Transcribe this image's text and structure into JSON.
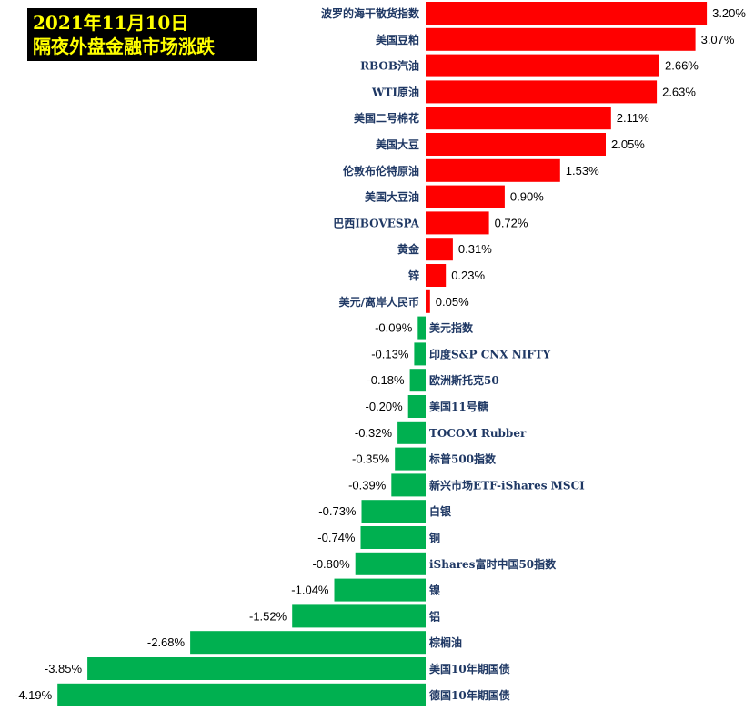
{
  "title": {
    "line1": "2021年11月10日",
    "line2": "隔夜外盘金融市场涨跌"
  },
  "colors": {
    "positive": "#ff0000",
    "negative": "#00b050",
    "label": "#1f3864",
    "title_bg": "#000000",
    "title_fg": "#ffff00"
  },
  "chart_data": {
    "type": "bar",
    "orientation": "horizontal",
    "value_format": "percent",
    "categories": [
      "波罗的海干散货指数",
      "美国豆粕",
      "RBOB汽油",
      "WTI原油",
      "美国二号棉花",
      "美国大豆",
      "伦敦布伦特原油",
      "美国大豆油",
      "巴西IBOVESPA",
      "黄金",
      "锌",
      "美元/离岸人民币",
      "美元指数",
      "印度S&P CNX NIFTY",
      "欧洲斯托克50",
      "美国11号糖",
      "TOCOM Rubber",
      "标普500指数",
      "新兴市场ETF-iShares MSCI",
      "白银",
      "铜",
      "iShares富时中国50指数",
      "镍",
      "铝",
      "棕榈油",
      "美国10年期国债",
      "德国10年期国债"
    ],
    "values": [
      3.2,
      3.07,
      2.66,
      2.63,
      2.11,
      2.05,
      1.53,
      0.9,
      0.72,
      0.31,
      0.23,
      0.05,
      -0.09,
      -0.13,
      -0.18,
      -0.2,
      -0.32,
      -0.35,
      -0.39,
      -0.73,
      -0.74,
      -0.8,
      -1.04,
      -1.52,
      -2.68,
      -3.85,
      -4.19
    ],
    "data_labels": [
      "3.20%",
      "3.07%",
      "2.66%",
      "2.63%",
      "2.11%",
      "2.05%",
      "1.53%",
      "0.90%",
      "0.72%",
      "0.31%",
      "0.23%",
      "0.05%",
      "-0.09%",
      "-0.13%",
      "-0.18%",
      "-0.20%",
      "-0.32%",
      "-0.35%",
      "-0.39%",
      "-0.73%",
      "-0.74%",
      "-0.80%",
      "-1.04%",
      "-1.52%",
      "-2.68%",
      "-3.85%",
      "-4.19%"
    ],
    "grid": false,
    "legend": "none"
  }
}
